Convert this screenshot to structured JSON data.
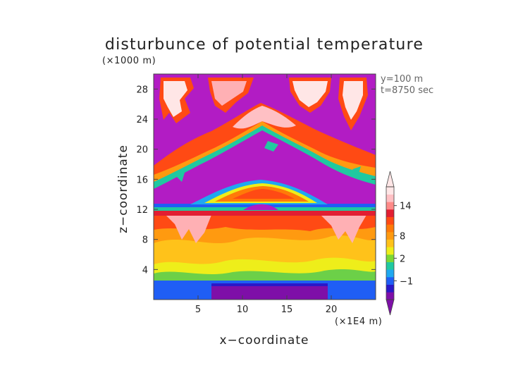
{
  "chart_data": {
    "type": "heatmap",
    "title": "disturbunce of potential temperature",
    "xlabel": "x−coordinate",
    "ylabel": "z−coordinate",
    "x_unit": "(×1E4 m)",
    "y_unit": "(×1000 m)",
    "annotations": [
      "y=100 m",
      "t=8750 sec"
    ],
    "xlim": [
      0,
      25
    ],
    "ylim": [
      0,
      30
    ],
    "xticks": [
      5,
      10,
      15,
      20
    ],
    "yticks": [
      4,
      8,
      12,
      16,
      20,
      24,
      28
    ],
    "colorbar": {
      "levels": [
        -3,
        -2,
        -1,
        0,
        1,
        2,
        4,
        6,
        8,
        10,
        12,
        13,
        14,
        15,
        16
      ],
      "tick_labels": [
        "14",
        "8",
        "2",
        "−1"
      ],
      "tick_values": [
        14,
        8,
        2,
        -1
      ],
      "colors": [
        "#7e0fa8",
        "#2a18c8",
        "#1f5ef5",
        "#1fa8f0",
        "#20c9a0",
        "#7cd834",
        "#eeee1a",
        "#ffc21a",
        "#ff9a10",
        "#ff7a08",
        "#ff4a14",
        "#e21e32",
        "#ff8a88",
        "#ffc0c4",
        "#ffe6e6"
      ],
      "extend": "both"
    },
    "regions": [
      {
        "name": "surface layer",
        "x": [
          0,
          25
        ],
        "z": [
          0,
          2
        ],
        "value": -1.5
      },
      {
        "name": "lower warm layer",
        "x": [
          0,
          25
        ],
        "z": [
          2,
          11
        ],
        "value": 6
      },
      {
        "name": "inversion band",
        "x": [
          0,
          25
        ],
        "z": [
          11,
          12.5
        ],
        "value": 1
      },
      {
        "name": "dome",
        "x": [
          8,
          17
        ],
        "z": [
          12,
          16
        ],
        "value": 10
      },
      {
        "name": "upper arc",
        "x": [
          0,
          25
        ],
        "z": [
          14,
          26
        ],
        "value": 12
      },
      {
        "name": "upper patches",
        "x": [
          0,
          25
        ],
        "z": [
          22,
          30
        ],
        "value": 15
      },
      {
        "name": "background",
        "x": [
          0,
          25
        ],
        "z": [
          12,
          30
        ],
        "value": -3
      }
    ]
  }
}
